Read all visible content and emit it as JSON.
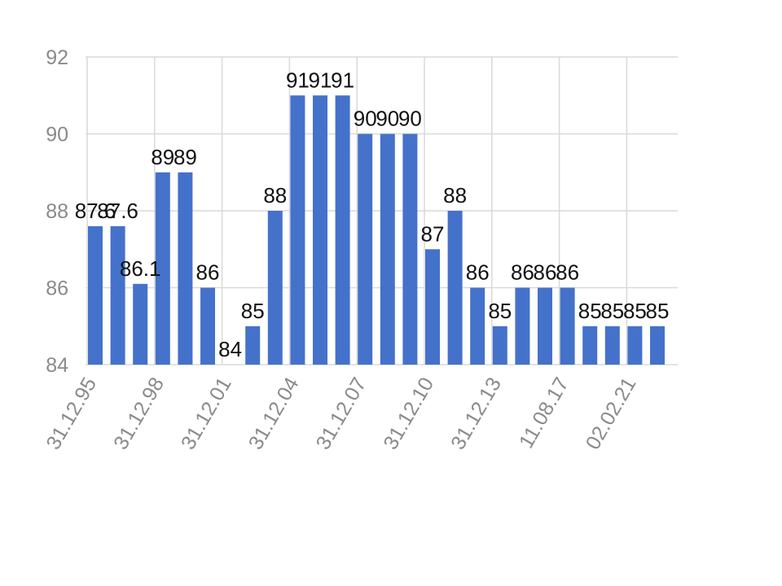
{
  "chart_data": {
    "type": "bar",
    "title": "",
    "xlabel": "",
    "ylabel": "",
    "ylim": [
      84,
      92
    ],
    "yticks": [
      84,
      86,
      88,
      90,
      92
    ],
    "grid": true,
    "bar_color": "#4472CA",
    "x_tick_labels": [
      "31.12.95",
      "31.12.98",
      "31.12.01",
      "31.12.04",
      "31.12.07",
      "31.12.10",
      "31.12.13",
      "11.08.17",
      "02.02.21"
    ],
    "values": [
      87.6,
      87.6,
      86.1,
      89,
      89,
      86,
      84,
      85,
      88,
      91,
      91,
      91,
      90,
      90,
      90,
      87,
      88,
      86,
      85,
      86,
      86,
      86,
      85,
      85,
      85,
      85
    ],
    "data_labels": [
      "87.6",
      "87.6",
      "86.1",
      "89",
      "89",
      "86",
      "84",
      "85",
      "88",
      "91",
      "91",
      "91",
      "90",
      "90",
      "90",
      "87",
      "88",
      "86",
      "85",
      "86",
      "86",
      "86",
      "85",
      "85",
      "85",
      "85"
    ]
  }
}
